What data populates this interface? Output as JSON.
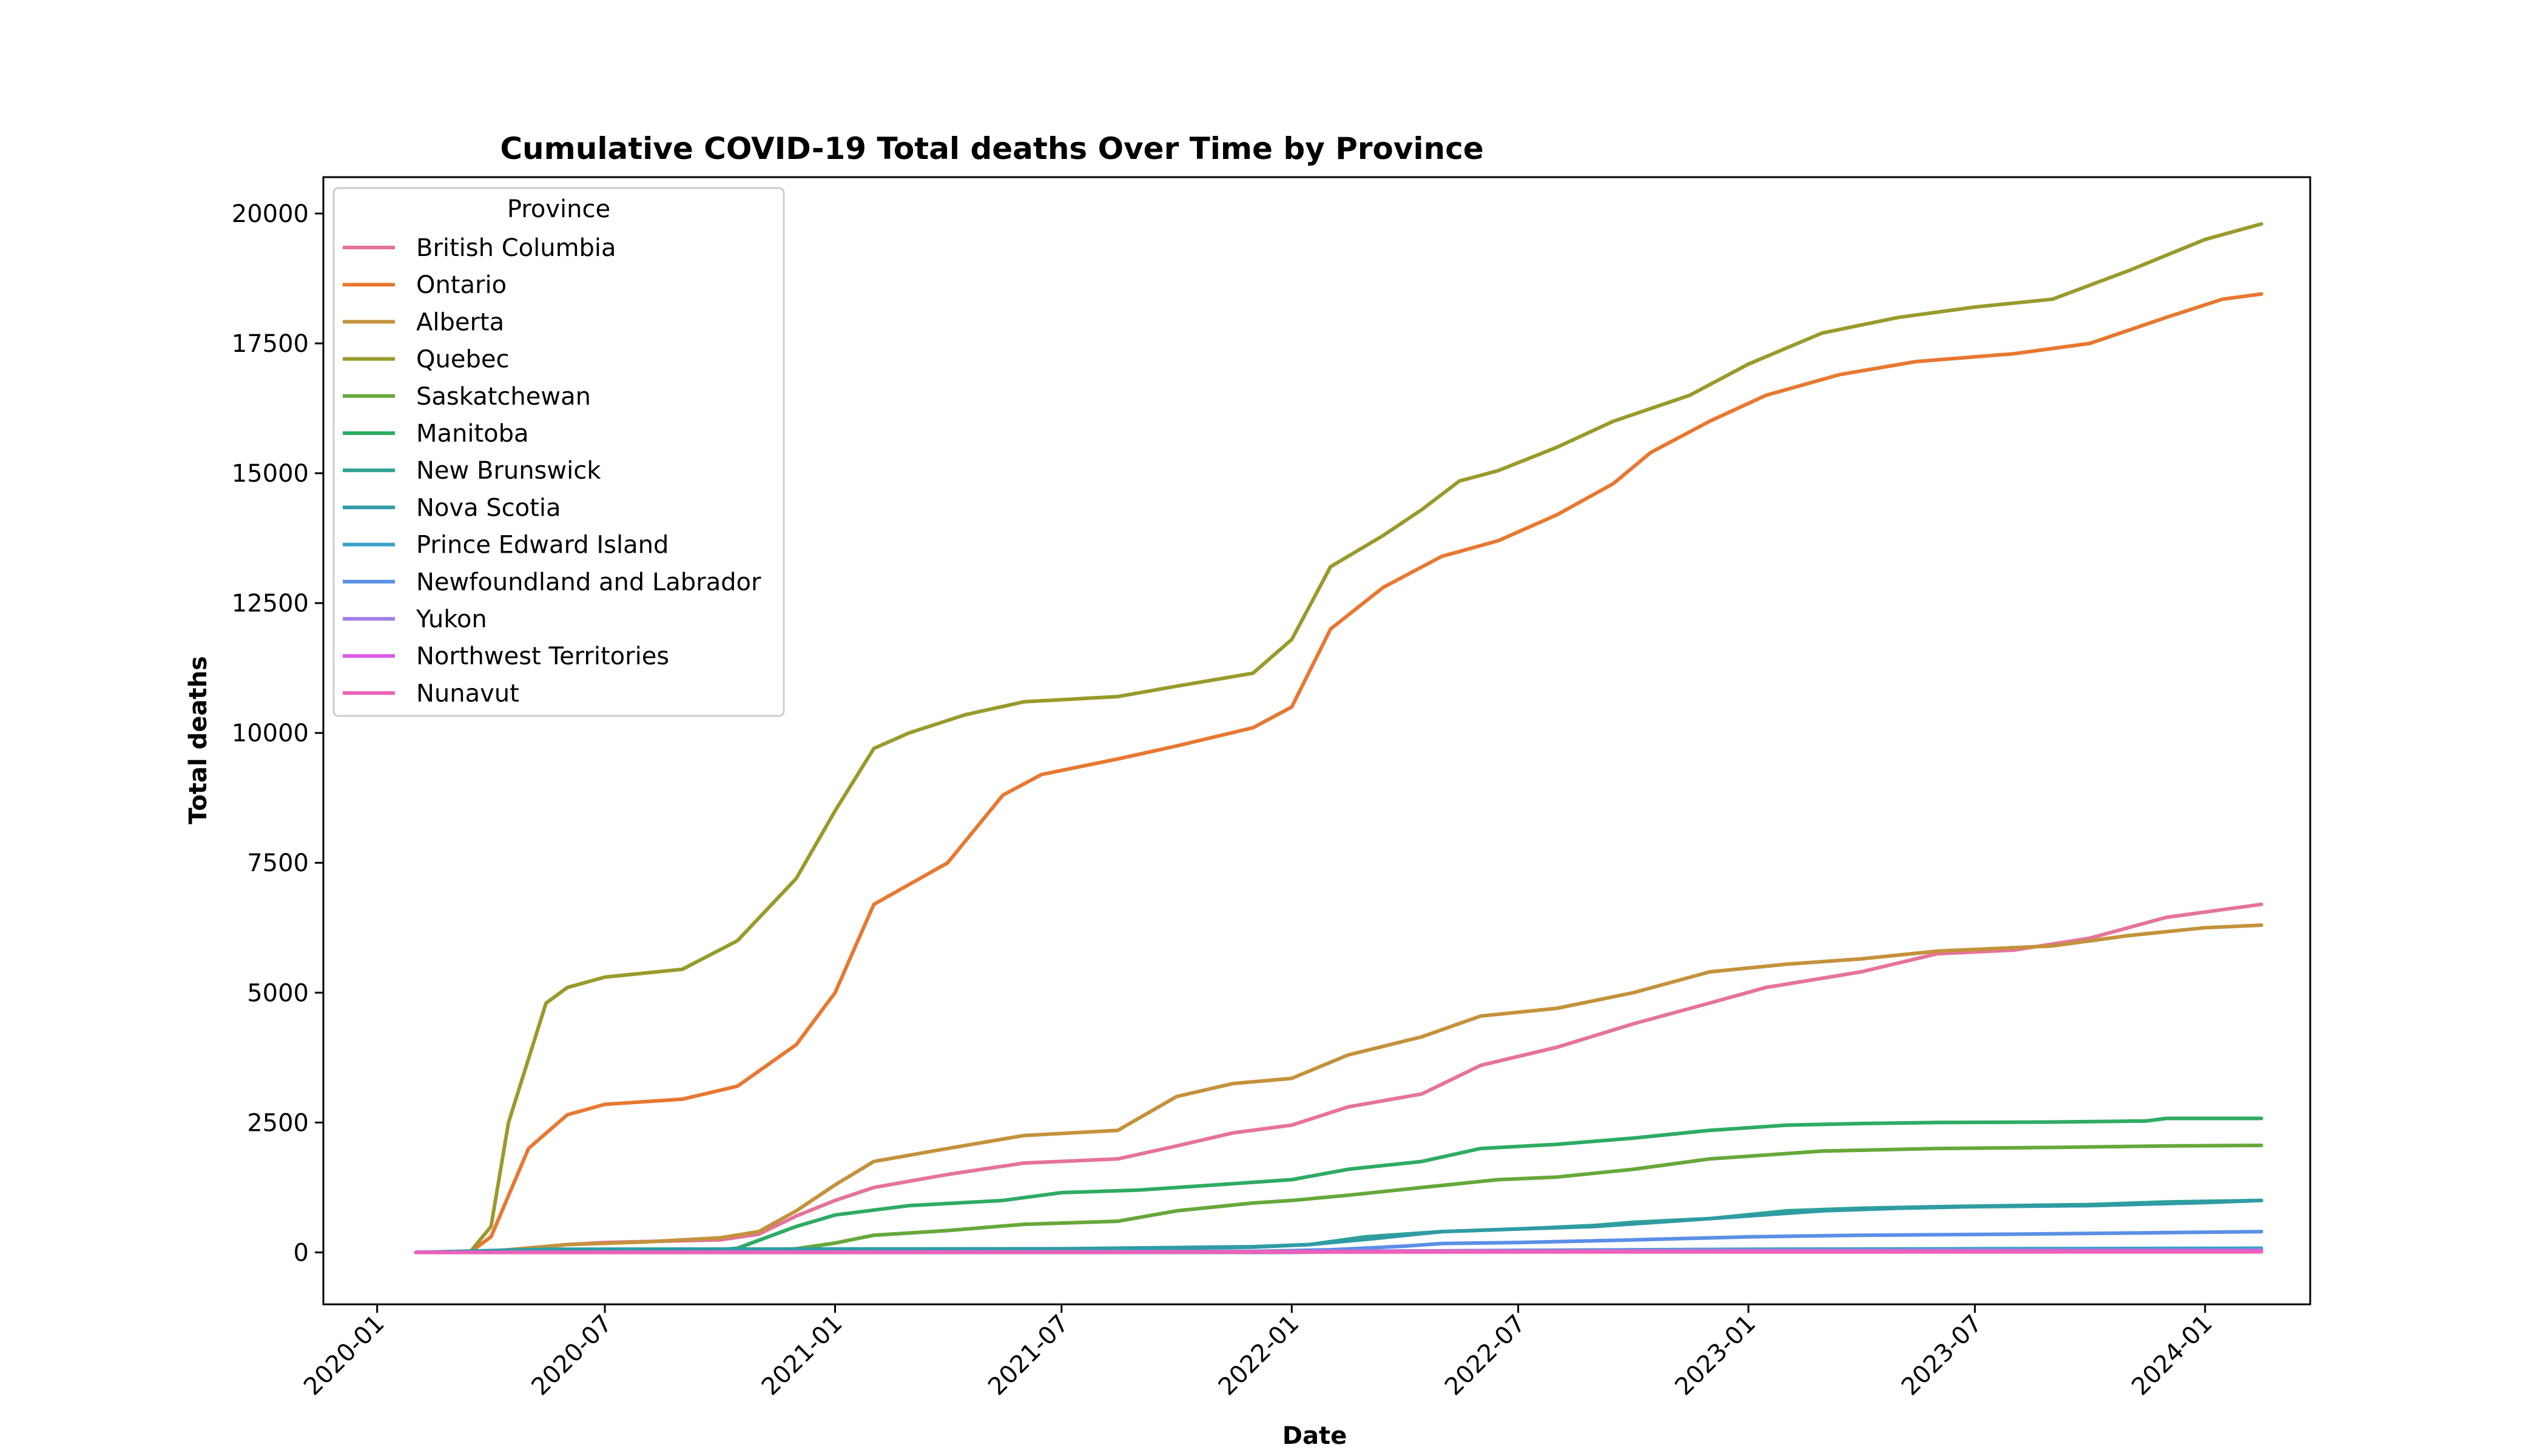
{
  "chart_data": {
    "type": "line",
    "title": "Cumulative COVID-19 Total deaths Over Time by Province",
    "xlabel": "Date",
    "ylabel": "Total deaths",
    "legend_title": "Province",
    "legend_position": "top-left",
    "grid": false,
    "x_range": [
      "2019-11-19",
      "2024-03-25"
    ],
    "ylim": [
      -1000,
      20700
    ],
    "x_ticks": [
      "2020-01",
      "2020-07",
      "2021-01",
      "2021-07",
      "2022-01",
      "2022-07",
      "2023-01",
      "2023-07",
      "2024-01"
    ],
    "y_ticks": [
      0,
      2500,
      5000,
      7500,
      10000,
      12500,
      15000,
      17500,
      20000
    ],
    "series": [
      {
        "name": "British Columbia",
        "color": "#e5739a",
        "points": [
          [
            "2020-02-01",
            0
          ],
          [
            "2020-03-15",
            0
          ],
          [
            "2020-04-15",
            50
          ],
          [
            "2020-06-01",
            150
          ],
          [
            "2020-07-01",
            190
          ],
          [
            "2020-10-01",
            240
          ],
          [
            "2020-11-01",
            350
          ],
          [
            "2020-12-01",
            700
          ],
          [
            "2021-01-01",
            1000
          ],
          [
            "2021-02-01",
            1250
          ],
          [
            "2021-04-01",
            1500
          ],
          [
            "2021-06-01",
            1720
          ],
          [
            "2021-08-15",
            1800
          ],
          [
            "2021-10-01",
            2050
          ],
          [
            "2021-11-15",
            2300
          ],
          [
            "2022-01-01",
            2450
          ],
          [
            "2022-02-15",
            2800
          ],
          [
            "2022-04-15",
            3050
          ],
          [
            "2022-06-01",
            3600
          ],
          [
            "2022-08-01",
            3950
          ],
          [
            "2022-10-01",
            4400
          ],
          [
            "2022-12-01",
            4800
          ],
          [
            "2023-01-15",
            5100
          ],
          [
            "2023-04-01",
            5400
          ],
          [
            "2023-06-01",
            5750
          ],
          [
            "2023-08-01",
            5820
          ],
          [
            "2023-10-01",
            6050
          ],
          [
            "2023-12-01",
            6450
          ],
          [
            "2024-02-15",
            6700
          ]
        ]
      },
      {
        "name": "Ontario",
        "color": "#e87830",
        "points": [
          [
            "2020-02-01",
            0
          ],
          [
            "2020-03-15",
            0
          ],
          [
            "2020-04-01",
            300
          ],
          [
            "2020-05-01",
            2000
          ],
          [
            "2020-06-01",
            2650
          ],
          [
            "2020-07-01",
            2850
          ],
          [
            "2020-09-01",
            2950
          ],
          [
            "2020-10-15",
            3200
          ],
          [
            "2020-12-01",
            4000
          ],
          [
            "2021-01-01",
            5000
          ],
          [
            "2021-02-01",
            6700
          ],
          [
            "2021-04-01",
            7500
          ],
          [
            "2021-05-15",
            8800
          ],
          [
            "2021-06-15",
            9200
          ],
          [
            "2021-08-15",
            9500
          ],
          [
            "2021-10-01",
            9750
          ],
          [
            "2021-12-01",
            10100
          ],
          [
            "2022-01-01",
            10500
          ],
          [
            "2022-02-01",
            12000
          ],
          [
            "2022-03-15",
            12800
          ],
          [
            "2022-05-01",
            13400
          ],
          [
            "2022-06-15",
            13700
          ],
          [
            "2022-08-01",
            14200
          ],
          [
            "2022-09-15",
            14800
          ],
          [
            "2022-10-15",
            15400
          ],
          [
            "2022-12-01",
            16000
          ],
          [
            "2023-01-15",
            16500
          ],
          [
            "2023-03-15",
            16900
          ],
          [
            "2023-05-15",
            17150
          ],
          [
            "2023-08-01",
            17300
          ],
          [
            "2023-10-01",
            17500
          ],
          [
            "2023-12-01",
            18000
          ],
          [
            "2024-01-15",
            18350
          ],
          [
            "2024-02-15",
            18450
          ]
        ]
      },
      {
        "name": "Alberta",
        "color": "#c4923c",
        "points": [
          [
            "2020-02-01",
            0
          ],
          [
            "2020-03-15",
            0
          ],
          [
            "2020-04-15",
            50
          ],
          [
            "2020-06-01",
            150
          ],
          [
            "2020-08-01",
            200
          ],
          [
            "2020-10-01",
            280
          ],
          [
            "2020-11-01",
            400
          ],
          [
            "2020-12-01",
            800
          ],
          [
            "2021-01-01",
            1300
          ],
          [
            "2021-02-01",
            1750
          ],
          [
            "2021-04-01",
            2000
          ],
          [
            "2021-06-01",
            2250
          ],
          [
            "2021-08-15",
            2350
          ],
          [
            "2021-10-01",
            3000
          ],
          [
            "2021-11-15",
            3250
          ],
          [
            "2022-01-01",
            3350
          ],
          [
            "2022-02-15",
            3800
          ],
          [
            "2022-04-15",
            4150
          ],
          [
            "2022-06-01",
            4550
          ],
          [
            "2022-08-01",
            4700
          ],
          [
            "2022-10-01",
            5000
          ],
          [
            "2022-12-01",
            5400
          ],
          [
            "2023-02-01",
            5550
          ],
          [
            "2023-04-01",
            5650
          ],
          [
            "2023-06-01",
            5800
          ],
          [
            "2023-09-01",
            5900
          ],
          [
            "2023-11-01",
            6100
          ],
          [
            "2024-01-01",
            6250
          ],
          [
            "2024-02-15",
            6300
          ]
        ]
      },
      {
        "name": "Quebec",
        "color": "#9a9a2c",
        "points": [
          [
            "2020-02-01",
            0
          ],
          [
            "2020-03-15",
            0
          ],
          [
            "2020-04-01",
            500
          ],
          [
            "2020-04-15",
            2500
          ],
          [
            "2020-05-15",
            4800
          ],
          [
            "2020-06-01",
            5100
          ],
          [
            "2020-07-01",
            5300
          ],
          [
            "2020-09-01",
            5450
          ],
          [
            "2020-10-15",
            6000
          ],
          [
            "2020-12-01",
            7200
          ],
          [
            "2021-01-01",
            8500
          ],
          [
            "2021-02-01",
            9700
          ],
          [
            "2021-03-01",
            10000
          ],
          [
            "2021-04-15",
            10350
          ],
          [
            "2021-06-01",
            10600
          ],
          [
            "2021-08-15",
            10700
          ],
          [
            "2021-10-01",
            10900
          ],
          [
            "2021-12-01",
            11150
          ],
          [
            "2022-01-01",
            11800
          ],
          [
            "2022-02-01",
            13200
          ],
          [
            "2022-03-15",
            13800
          ],
          [
            "2022-04-15",
            14300
          ],
          [
            "2022-05-15",
            14850
          ],
          [
            "2022-06-15",
            15050
          ],
          [
            "2022-08-01",
            15500
          ],
          [
            "2022-09-15",
            16000
          ],
          [
            "2022-11-15",
            16500
          ],
          [
            "2023-01-01",
            17100
          ],
          [
            "2023-03-01",
            17700
          ],
          [
            "2023-05-01",
            18000
          ],
          [
            "2023-07-01",
            18200
          ],
          [
            "2023-09-01",
            18350
          ],
          [
            "2023-11-01",
            18900
          ],
          [
            "2024-01-01",
            19500
          ],
          [
            "2024-02-15",
            19800
          ]
        ]
      },
      {
        "name": "Saskatchewan",
        "color": "#66a83a",
        "points": [
          [
            "2020-02-01",
            0
          ],
          [
            "2020-10-15",
            10
          ],
          [
            "2020-12-01",
            70
          ],
          [
            "2021-01-01",
            180
          ],
          [
            "2021-02-01",
            330
          ],
          [
            "2021-04-01",
            420
          ],
          [
            "2021-06-01",
            540
          ],
          [
            "2021-08-15",
            600
          ],
          [
            "2021-10-01",
            800
          ],
          [
            "2021-12-01",
            950
          ],
          [
            "2022-01-01",
            1000
          ],
          [
            "2022-02-15",
            1100
          ],
          [
            "2022-04-15",
            1250
          ],
          [
            "2022-06-15",
            1400
          ],
          [
            "2022-08-01",
            1450
          ],
          [
            "2022-10-01",
            1600
          ],
          [
            "2022-12-01",
            1800
          ],
          [
            "2023-03-01",
            1950
          ],
          [
            "2023-06-01",
            2000
          ],
          [
            "2023-09-01",
            2020
          ],
          [
            "2023-12-01",
            2050
          ],
          [
            "2024-02-15",
            2060
          ]
        ]
      },
      {
        "name": "Manitoba",
        "color": "#2fab63",
        "points": [
          [
            "2020-02-01",
            0
          ],
          [
            "2020-09-15",
            20
          ],
          [
            "2020-10-15",
            80
          ],
          [
            "2020-12-01",
            500
          ],
          [
            "2021-01-01",
            720
          ],
          [
            "2021-03-01",
            900
          ],
          [
            "2021-05-15",
            1000
          ],
          [
            "2021-07-01",
            1150
          ],
          [
            "2021-09-01",
            1200
          ],
          [
            "2021-11-01",
            1300
          ],
          [
            "2022-01-01",
            1400
          ],
          [
            "2022-02-15",
            1600
          ],
          [
            "2022-04-15",
            1750
          ],
          [
            "2022-06-01",
            2000
          ],
          [
            "2022-08-01",
            2080
          ],
          [
            "2022-10-01",
            2200
          ],
          [
            "2022-12-01",
            2350
          ],
          [
            "2023-02-01",
            2450
          ],
          [
            "2023-04-01",
            2480
          ],
          [
            "2023-06-01",
            2500
          ],
          [
            "2023-09-01",
            2510
          ],
          [
            "2023-11-15",
            2530
          ],
          [
            "2023-12-01",
            2580
          ],
          [
            "2024-02-15",
            2580
          ]
        ]
      },
      {
        "name": "New Brunswick",
        "color": "#2ea393",
        "points": [
          [
            "2020-02-01",
            0
          ],
          [
            "2021-07-01",
            50
          ],
          [
            "2021-12-01",
            100
          ],
          [
            "2022-01-15",
            150
          ],
          [
            "2022-03-01",
            300
          ],
          [
            "2022-05-01",
            400
          ],
          [
            "2022-07-01",
            450
          ],
          [
            "2022-09-01",
            520
          ],
          [
            "2022-10-01",
            580
          ],
          [
            "2022-12-01",
            650
          ],
          [
            "2023-02-01",
            800
          ],
          [
            "2023-04-01",
            850
          ],
          [
            "2023-06-01",
            880
          ],
          [
            "2023-08-01",
            900
          ],
          [
            "2023-10-01",
            920
          ],
          [
            "2023-12-01",
            970
          ],
          [
            "2024-02-15",
            1000
          ]
        ]
      },
      {
        "name": "Nova Scotia",
        "color": "#2f9ba6",
        "points": [
          [
            "2020-02-01",
            0
          ],
          [
            "2020-05-15",
            60
          ],
          [
            "2021-01-01",
            65
          ],
          [
            "2021-07-01",
            70
          ],
          [
            "2021-12-01",
            110
          ],
          [
            "2022-01-15",
            150
          ],
          [
            "2022-03-01",
            250
          ],
          [
            "2022-05-01",
            400
          ],
          [
            "2022-07-01",
            450
          ],
          [
            "2022-09-01",
            500
          ],
          [
            "2022-11-01",
            600
          ],
          [
            "2023-01-01",
            700
          ],
          [
            "2023-03-01",
            800
          ],
          [
            "2023-05-01",
            850
          ],
          [
            "2023-07-01",
            880
          ],
          [
            "2023-10-01",
            900
          ],
          [
            "2024-01-01",
            960
          ],
          [
            "2024-02-15",
            1000
          ]
        ]
      },
      {
        "name": "Prince Edward Island",
        "color": "#3ba0c8",
        "points": [
          [
            "2020-02-01",
            0
          ],
          [
            "2022-01-01",
            0
          ],
          [
            "2022-03-01",
            20
          ],
          [
            "2022-07-01",
            40
          ],
          [
            "2023-01-01",
            60
          ],
          [
            "2023-07-01",
            70
          ],
          [
            "2024-02-15",
            80
          ]
        ]
      },
      {
        "name": "Newfoundland and Labrador",
        "color": "#5b8fe6",
        "points": [
          [
            "2020-02-01",
            0
          ],
          [
            "2020-04-15",
            3
          ],
          [
            "2021-12-01",
            20
          ],
          [
            "2022-02-01",
            50
          ],
          [
            "2022-04-01",
            120
          ],
          [
            "2022-05-01",
            170
          ],
          [
            "2022-07-01",
            190
          ],
          [
            "2022-10-01",
            240
          ],
          [
            "2023-01-01",
            300
          ],
          [
            "2023-04-01",
            330
          ],
          [
            "2023-08-01",
            350
          ],
          [
            "2023-12-01",
            380
          ],
          [
            "2024-02-15",
            400
          ]
        ]
      },
      {
        "name": "Yukon",
        "color": "#a280e8",
        "points": [
          [
            "2020-02-01",
            0
          ],
          [
            "2021-05-01",
            2
          ],
          [
            "2022-01-01",
            20
          ],
          [
            "2022-06-01",
            30
          ],
          [
            "2023-01-01",
            35
          ],
          [
            "2024-02-15",
            40
          ]
        ]
      },
      {
        "name": "Northwest Territories",
        "color": "#db59e6",
        "points": [
          [
            "2020-02-01",
            0
          ],
          [
            "2021-08-01",
            2
          ],
          [
            "2022-01-01",
            15
          ],
          [
            "2022-06-01",
            20
          ],
          [
            "2023-01-01",
            22
          ],
          [
            "2024-02-15",
            25
          ]
        ]
      },
      {
        "name": "Nunavut",
        "color": "#ec62b7",
        "points": [
          [
            "2020-02-01",
            0
          ],
          [
            "2021-05-01",
            4
          ],
          [
            "2022-01-01",
            6
          ],
          [
            "2022-06-01",
            8
          ],
          [
            "2024-02-15",
            10
          ]
        ]
      }
    ]
  }
}
